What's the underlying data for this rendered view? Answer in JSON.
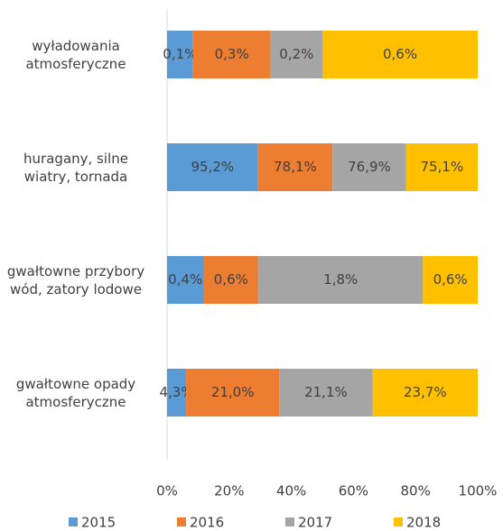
{
  "chart_data": {
    "type": "bar",
    "orientation": "horizontal",
    "stacked": "percent",
    "categories": [
      "wyładowania atmosferyczne",
      "huragany, silne wiatry, tornada",
      "gwałtowne przybory wód, zatory lodowe",
      "gwałtowne opady atmosferyczne"
    ],
    "series": [
      {
        "name": "2015",
        "color": "#5b9bd5",
        "values": [
          0.1,
          95.2,
          0.4,
          4.3
        ],
        "value_labels": [
          "0,1%",
          "95,2%",
          "0,4%",
          "4,3%"
        ]
      },
      {
        "name": "2016",
        "color": "#ed7d31",
        "values": [
          0.3,
          78.1,
          0.6,
          21.0
        ],
        "value_labels": [
          "0,3%",
          "78,1%",
          "0,6%",
          "21,0%"
        ]
      },
      {
        "name": "2017",
        "color": "#a5a5a5",
        "values": [
          0.2,
          76.9,
          1.8,
          21.1
        ],
        "value_labels": [
          "0,2%",
          "76,9%",
          "1,8%",
          "21,1%"
        ]
      },
      {
        "name": "2018",
        "color": "#ffc000",
        "values": [
          0.6,
          75.1,
          0.6,
          23.7
        ],
        "value_labels": [
          "0,6%",
          "75,1%",
          "0,6%",
          "23,7%"
        ]
      }
    ],
    "xlim": [
      0,
      100
    ],
    "xticks": [
      {
        "value": 0,
        "label": "0%"
      },
      {
        "value": 20,
        "label": "20%"
      },
      {
        "value": 40,
        "label": "40%"
      },
      {
        "value": 60,
        "label": "60%"
      },
      {
        "value": 80,
        "label": "80%"
      },
      {
        "value": 100,
        "label": "100%"
      }
    ],
    "legend": "bottom"
  }
}
